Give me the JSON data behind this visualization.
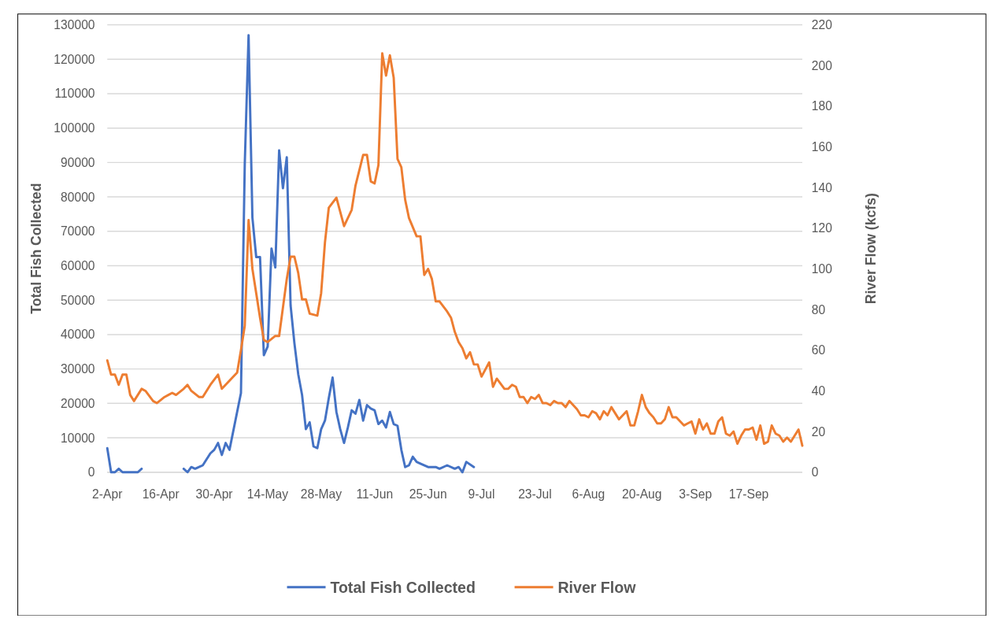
{
  "chart_data": {
    "type": "line",
    "ylabel": "Total Fish Collected",
    "y2label": "River Flow (kcfs)",
    "xlim": [
      "--04-02",
      "--10-01"
    ],
    "xticks": [
      {
        "value": "--04-02",
        "label": "2-Apr"
      },
      {
        "value": "--04-16",
        "label": "16-Apr"
      },
      {
        "value": "--04-30",
        "label": "30-Apr"
      },
      {
        "value": "--05-14",
        "label": "14-May"
      },
      {
        "value": "--05-28",
        "label": "28-May"
      },
      {
        "value": "--06-11",
        "label": "11-Jun"
      },
      {
        "value": "--06-25",
        "label": "25-Jun"
      },
      {
        "value": "--07-09",
        "label": "9-Jul"
      },
      {
        "value": "--07-23",
        "label": "23-Jul"
      },
      {
        "value": "--08-06",
        "label": "6-Aug"
      },
      {
        "value": "--08-20",
        "label": "20-Aug"
      },
      {
        "value": "--09-03",
        "label": "3-Sep"
      },
      {
        "value": "--09-17",
        "label": "17-Sep"
      }
    ],
    "ylim": [
      0,
      130000
    ],
    "yticks": [
      0,
      10000,
      20000,
      30000,
      40000,
      50000,
      60000,
      70000,
      80000,
      90000,
      100000,
      110000,
      120000,
      130000
    ],
    "y2lim": [
      0,
      220
    ],
    "y2ticks": [
      0,
      20,
      40,
      60,
      80,
      100,
      120,
      140,
      160,
      180,
      200,
      220
    ],
    "grid": "y",
    "legend": "bottom",
    "series": [
      {
        "name": "Total Fish Collected",
        "color": "#4472c4",
        "x": [
          "--04-02",
          "--04-03",
          "--04-04",
          "--04-05",
          "--04-06",
          "--04-07",
          "--04-08",
          "--04-09",
          "--04-10",
          "--04-11",
          "--04-16",
          "--04-22",
          "--04-23",
          "--04-24",
          "--04-25",
          "--04-27",
          "--04-29",
          "--04-30",
          "--05-01",
          "--05-02",
          "--05-03",
          "--05-04",
          "--05-07",
          "--05-08",
          "--05-09",
          "--05-10",
          "--05-11",
          "--05-12",
          "--05-13",
          "--05-14",
          "--05-15",
          "--05-16",
          "--05-17",
          "--05-18",
          "--05-19",
          "--05-20",
          "--05-21",
          "--05-22",
          "--05-23",
          "--05-24",
          "--05-25",
          "--05-26",
          "--05-27",
          "--05-28",
          "--05-29",
          "--05-30",
          "--05-31",
          "--06-01",
          "--06-02",
          "--06-03",
          "--06-04",
          "--06-05",
          "--06-06",
          "--06-07",
          "--06-08",
          "--06-09",
          "--06-10",
          "--06-11",
          "--06-12",
          "--06-13",
          "--06-14",
          "--06-15",
          "--06-16",
          "--06-17",
          "--06-18",
          "--06-19",
          "--06-20",
          "--06-21",
          "--06-22",
          "--06-23",
          "--06-25",
          "--06-27",
          "--06-28",
          "--06-30",
          "--07-02",
          "--07-03",
          "--07-04",
          "--07-05",
          "--07-07"
        ],
        "values": [
          7000,
          0,
          0,
          1000,
          0,
          0,
          0,
          0,
          0,
          1000,
          null,
          1000,
          0,
          1500,
          1000,
          2000,
          5500,
          6500,
          8500,
          5000,
          8500,
          6500,
          23000,
          89500,
          127000,
          74000,
          62500,
          62500,
          34000,
          36500,
          65000,
          59500,
          93500,
          82500,
          91500,
          48500,
          37500,
          28500,
          22500,
          12500,
          14500,
          7500,
          7000,
          12500,
          15000,
          21500,
          27500,
          17500,
          12500,
          8500,
          13000,
          18000,
          17000,
          21000,
          15000,
          19500,
          18500,
          18000,
          14000,
          15000,
          13000,
          17500,
          14000,
          13500,
          6500,
          1500,
          2000,
          4500,
          3000,
          2500,
          1500,
          1500,
          1000,
          2000,
          1000,
          1500,
          0,
          3000,
          1500
        ]
      },
      {
        "name": "River Flow",
        "color": "#ed7d31",
        "axis": "y2",
        "x": [
          "--04-02",
          "--04-03",
          "--04-04",
          "--04-05",
          "--04-06",
          "--04-07",
          "--04-08",
          "--04-09",
          "--04-11",
          "--04-12",
          "--04-14",
          "--04-15",
          "--04-17",
          "--04-18",
          "--04-19",
          "--04-20",
          "--04-22",
          "--04-23",
          "--04-24",
          "--04-26",
          "--04-27",
          "--04-29",
          "--05-01",
          "--05-02",
          "--05-04",
          "--05-06",
          "--05-07",
          "--05-08",
          "--05-09",
          "--05-10",
          "--05-12",
          "--05-13",
          "--05-14",
          "--05-16",
          "--05-17",
          "--05-19",
          "--05-20",
          "--05-21",
          "--05-22",
          "--05-23",
          "--05-24",
          "--05-25",
          "--05-27",
          "--05-28",
          "--05-29",
          "--05-30",
          "--06-01",
          "--06-03",
          "--06-05",
          "--06-06",
          "--06-08",
          "--06-09",
          "--06-10",
          "--06-11",
          "--06-12",
          "--06-13",
          "--06-14",
          "--06-15",
          "--06-16",
          "--06-17",
          "--06-18",
          "--06-19",
          "--06-20",
          "--06-22",
          "--06-23",
          "--06-24",
          "--06-25",
          "--06-26",
          "--06-27",
          "--06-28",
          "--06-30",
          "--07-01",
          "--07-02",
          "--07-03",
          "--07-04",
          "--07-05",
          "--07-06",
          "--07-07",
          "--07-08",
          "--07-09",
          "--07-11",
          "--07-12",
          "--07-13",
          "--07-15",
          "--07-16",
          "--07-17",
          "--07-18",
          "--07-19",
          "--07-20",
          "--07-21",
          "--07-22",
          "--07-23",
          "--07-24",
          "--07-25",
          "--07-26",
          "--07-27",
          "--07-28",
          "--07-29",
          "--07-30",
          "--07-31",
          "--08-01",
          "--08-03",
          "--08-04",
          "--08-05",
          "--08-06",
          "--08-07",
          "--08-08",
          "--08-09",
          "--08-10",
          "--08-11",
          "--08-12",
          "--08-13",
          "--08-14",
          "--08-16",
          "--08-17",
          "--08-18",
          "--08-19",
          "--08-20",
          "--08-21",
          "--08-22",
          "--08-23",
          "--08-24",
          "--08-25",
          "--08-26",
          "--08-27",
          "--08-28",
          "--08-29",
          "--08-31",
          "--09-01",
          "--09-02",
          "--09-03",
          "--09-04",
          "--09-05",
          "--09-06",
          "--09-07",
          "--09-08",
          "--09-09",
          "--09-10",
          "--09-11",
          "--09-12",
          "--09-13",
          "--09-14",
          "--09-15",
          "--09-16",
          "--09-17",
          "--09-18",
          "--09-19",
          "--09-20",
          "--09-21",
          "--09-22",
          "--09-23",
          "--09-24",
          "--09-25",
          "--09-26",
          "--09-27",
          "--09-28",
          "--09-29",
          "--09-30",
          "--10-01"
        ],
        "values": [
          55,
          48,
          48,
          43,
          48,
          48,
          38,
          35,
          41,
          40,
          35,
          34,
          37,
          38,
          39,
          38,
          41,
          43,
          40,
          37,
          37,
          43,
          48,
          41,
          45,
          49,
          60,
          72,
          124,
          100,
          76,
          65,
          64,
          67,
          67,
          95,
          106,
          106,
          98,
          85,
          85,
          78,
          77,
          88,
          113,
          130,
          135,
          121,
          129,
          141,
          156,
          156,
          143,
          142,
          151,
          206,
          195,
          205,
          194,
          154,
          150,
          134,
          125,
          116,
          116,
          97,
          100,
          95,
          84,
          84,
          79,
          76,
          69,
          64,
          61,
          56,
          59,
          53,
          53,
          47,
          54,
          42,
          46,
          41,
          41,
          43,
          42,
          37,
          37,
          34,
          37,
          36,
          38,
          34,
          34,
          33,
          35,
          34,
          34,
          32,
          35,
          31,
          28,
          28,
          27,
          30,
          29,
          26,
          30,
          28,
          32,
          29,
          26,
          30,
          23,
          23,
          30,
          38,
          32,
          29,
          27,
          24,
          24,
          26,
          32,
          27,
          27,
          23,
          24,
          25,
          19,
          26,
          21,
          24,
          19,
          19,
          25,
          27,
          19,
          18,
          20,
          14,
          18,
          21,
          21,
          22,
          16,
          23,
          14,
          15,
          23,
          19,
          18,
          15,
          17,
          15,
          18,
          21,
          13
        ]
      }
    ]
  }
}
